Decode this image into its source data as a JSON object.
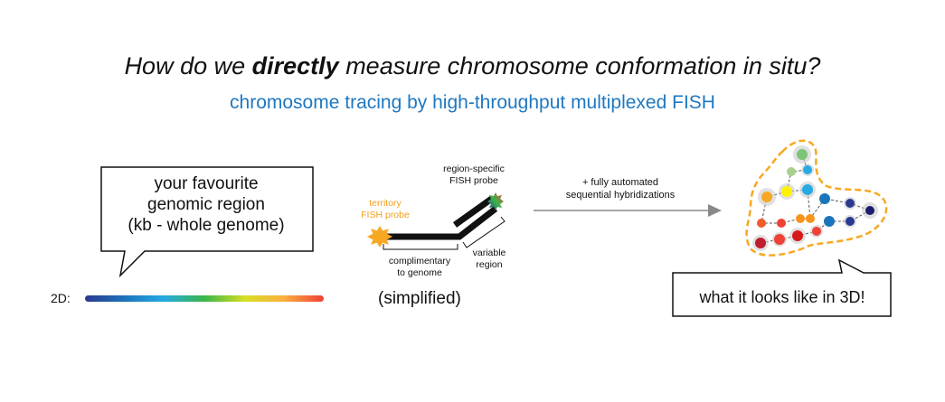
{
  "header": {
    "title_pre": "How do we ",
    "title_emph": "directly",
    "title_post": " measure chromosome conformation in situ?",
    "subtitle": "chromosome tracing by high-throughput multiplexed FISH"
  },
  "left_panel": {
    "callout_line1": "your favourite",
    "callout_line2": "genomic region",
    "callout_line3": "(kb - whole genome)",
    "label_2d": "2D:",
    "gradient_colors": [
      "#2b3990",
      "#1b75bc",
      "#27aae1",
      "#39b54a",
      "#d7df23",
      "#fbb040",
      "#ef4136"
    ]
  },
  "probe_panel": {
    "territory_line1": "territory",
    "territory_line2": "FISH probe",
    "region_line1": "region-specific",
    "region_line2": "FISH probe",
    "complimentary_line1": "complimentary",
    "complimentary_line2": "to genome",
    "variable_line1": "variable",
    "variable_line2": "region",
    "simplified": "(simplified)",
    "territory_color": "#f7a823"
  },
  "arrow": {
    "line1": "+ fully automated",
    "line2": "sequential hybridizations"
  },
  "right_panel": {
    "callout": "what it looks like in 3D!",
    "outline_color": "#f7a823"
  }
}
